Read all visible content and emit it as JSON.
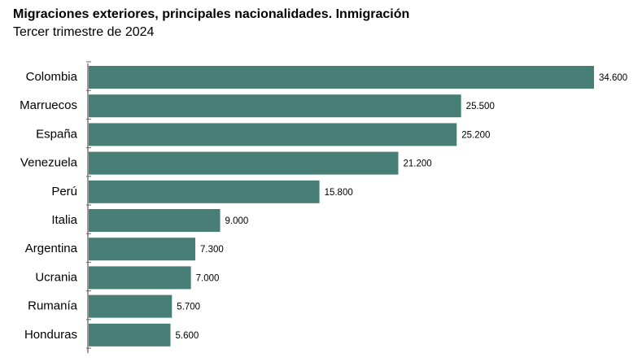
{
  "chart_data": {
    "type": "bar",
    "orientation": "horizontal",
    "title": "Migraciones exteriores, principales nacionalidades. Inmigración",
    "subtitle": "Tercer trimestre de 2024",
    "categories": [
      "Colombia",
      "Marruecos",
      "España",
      "Venezuela",
      "Perú",
      "Italia",
      "Argentina",
      "Ucrania",
      "Rumanía",
      "Honduras"
    ],
    "values": [
      34600,
      25500,
      25200,
      21200,
      15800,
      9000,
      7300,
      7000,
      5700,
      5600
    ],
    "value_labels": [
      "34.600",
      "25.500",
      "25.200",
      "21.200",
      "15.800",
      "9.000",
      "7.300",
      "7.000",
      "5.700",
      "5.600"
    ],
    "xlim": [
      0,
      34600
    ],
    "grid": false,
    "legend": "none",
    "bar_color": "#477e76"
  }
}
